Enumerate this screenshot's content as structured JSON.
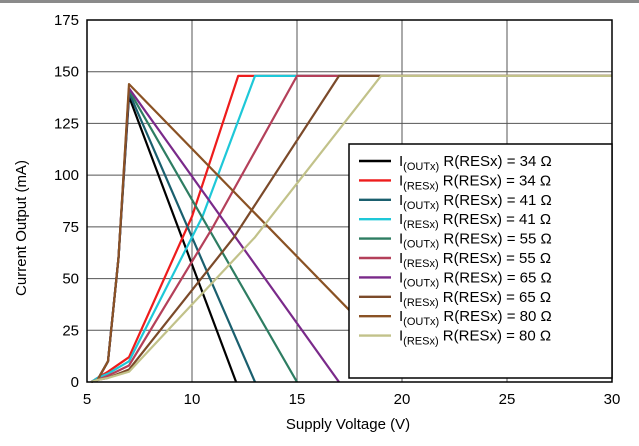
{
  "chart_data": {
    "type": "line",
    "title": "",
    "xlabel": "Supply Voltage (V)",
    "ylabel": "Current Output (mA)",
    "xlim": [
      5,
      30
    ],
    "ylim": [
      0,
      175
    ],
    "x_ticks": [
      5,
      10,
      15,
      20,
      25,
      30
    ],
    "y_ticks": [
      0,
      25,
      50,
      75,
      100,
      125,
      150,
      175
    ],
    "grid": true,
    "legend_position": "bottom-right",
    "series": [
      {
        "name_main": "I",
        "name_sub": "(OUTx)",
        "name_rest": " R(RESx) = 34 Ω",
        "color": "#000000",
        "x": [
          5.2,
          5.5,
          6.0,
          6.5,
          7.0,
          12.1
        ],
        "y": [
          0,
          1,
          10,
          60,
          138,
          0
        ]
      },
      {
        "name_main": "I",
        "name_sub": "(RESx)",
        "name_rest": " R(RESx) = 34 Ω",
        "color": "#ee1c1c",
        "x": [
          5.2,
          5.5,
          6.0,
          7.0,
          10.0,
          12.2,
          30
        ],
        "y": [
          0,
          2,
          5,
          12,
          80,
          148,
          148
        ]
      },
      {
        "name_main": "I",
        "name_sub": "(OUTx)",
        "name_rest": " R(RESx) = 41 Ω",
        "color": "#1a5f6e",
        "x": [
          5.2,
          5.5,
          6.0,
          6.5,
          7.0,
          13.0
        ],
        "y": [
          0,
          1,
          10,
          60,
          140,
          0
        ]
      },
      {
        "name_main": "I",
        "name_sub": "(RESx)",
        "name_rest": " R(RESx) = 41 Ω",
        "color": "#1ec8d8",
        "x": [
          5.2,
          5.5,
          6.0,
          7.0,
          10.5,
          13.0,
          30
        ],
        "y": [
          0,
          2,
          4,
          10,
          80,
          148,
          148
        ]
      },
      {
        "name_main": "I",
        "name_sub": "(OUTx)",
        "name_rest": " R(RESx) = 55 Ω",
        "color": "#2e7d62",
        "x": [
          5.2,
          5.5,
          6.0,
          6.5,
          7.0,
          15.0
        ],
        "y": [
          0,
          1,
          10,
          60,
          141,
          0
        ]
      },
      {
        "name_main": "I",
        "name_sub": "(RESx)",
        "name_rest": " R(RESx) = 55 Ω",
        "color": "#b4405a",
        "x": [
          5.2,
          5.5,
          6.0,
          7.0,
          11.0,
          15.0,
          30
        ],
        "y": [
          0,
          1,
          3,
          8,
          75,
          148,
          148
        ]
      },
      {
        "name_main": "I",
        "name_sub": "(OUTx)",
        "name_rest": " R(RESx) = 65 Ω",
        "color": "#7a2a8a",
        "x": [
          5.2,
          5.5,
          6.0,
          6.5,
          7.0,
          17.0
        ],
        "y": [
          0,
          1,
          10,
          60,
          142,
          0
        ]
      },
      {
        "name_main": "I",
        "name_sub": "(RESx)",
        "name_rest": " R(RESx) = 65 Ω",
        "color": "#7b4a2a",
        "x": [
          5.2,
          5.5,
          6.0,
          7.0,
          12.0,
          17.0,
          30
        ],
        "y": [
          0,
          1,
          2,
          6,
          70,
          148,
          148
        ]
      },
      {
        "name_main": "I",
        "name_sub": "(OUTx)",
        "name_rest": " R(RESx) = 80 Ω",
        "color": "#8a5224",
        "x": [
          5.2,
          5.5,
          6.0,
          6.5,
          7.0,
          19.0
        ],
        "y": [
          0,
          1,
          10,
          60,
          144,
          19
        ]
      },
      {
        "name_main": "I",
        "name_sub": "(RESx)",
        "name_rest": " R(RESx) = 80 Ω",
        "color": "#c2c28a",
        "x": [
          5.2,
          5.5,
          6.0,
          7.0,
          13.0,
          19.0,
          30
        ],
        "y": [
          0,
          1,
          2,
          5,
          70,
          148,
          148
        ]
      }
    ]
  }
}
